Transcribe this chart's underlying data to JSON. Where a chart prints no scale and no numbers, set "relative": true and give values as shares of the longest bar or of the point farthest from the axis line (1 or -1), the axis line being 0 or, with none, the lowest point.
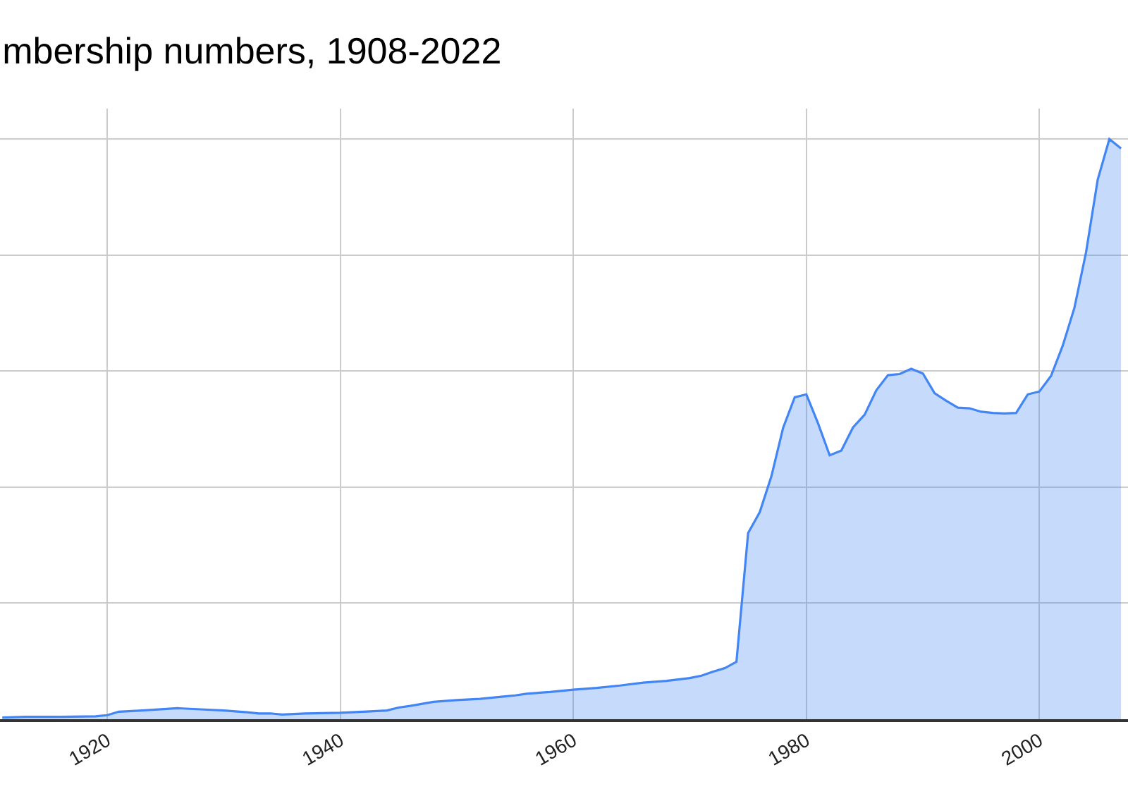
{
  "chart_data": {
    "type": "area",
    "title": "mbership numbers, 1908-2022",
    "relative": true,
    "grid": true,
    "tick_labels": "x",
    "xlim": [
      1910.8,
      2007.6
    ],
    "xticks": [
      1920,
      1940,
      1960,
      1980,
      2000
    ],
    "series": [
      {
        "color": "#4285f4",
        "x": [
          1911,
          1913,
          1916,
          1919,
          1920,
          1921,
          1923,
          1926,
          1928,
          1930,
          1932,
          1933,
          1934,
          1935,
          1937,
          1940,
          1942,
          1944,
          1945,
          1946,
          1948,
          1950,
          1952,
          1954,
          1955,
          1956,
          1958,
          1960,
          1962,
          1964,
          1966,
          1968,
          1970,
          1971,
          1972,
          1973,
          1974,
          1975,
          1976,
          1977,
          1978,
          1979,
          1980,
          1981,
          1982,
          1983,
          1984,
          1985,
          1986,
          1987,
          1988,
          1989,
          1990,
          1991,
          1992,
          1993,
          1994,
          1995,
          1996,
          1997,
          1998,
          1999,
          2000,
          2001,
          2002,
          2003,
          2004,
          2005,
          2006,
          2007
        ],
        "values": [
          0.003,
          0.004,
          0.004,
          0.005,
          0.007,
          0.013,
          0.015,
          0.019,
          0.017,
          0.015,
          0.012,
          0.01,
          0.01,
          0.008,
          0.01,
          0.011,
          0.013,
          0.015,
          0.02,
          0.023,
          0.03,
          0.033,
          0.035,
          0.039,
          0.041,
          0.044,
          0.047,
          0.051,
          0.054,
          0.058,
          0.063,
          0.066,
          0.071,
          0.075,
          0.082,
          0.088,
          0.099,
          0.321,
          0.357,
          0.419,
          0.502,
          0.555,
          0.56,
          0.51,
          0.455,
          0.463,
          0.503,
          0.525,
          0.567,
          0.593,
          0.595,
          0.604,
          0.596,
          0.562,
          0.549,
          0.537,
          0.536,
          0.53,
          0.528,
          0.527,
          0.528,
          0.56,
          0.565,
          0.592,
          0.644,
          0.709,
          0.805,
          0.93,
          1,
          0.984
        ]
      }
    ]
  }
}
